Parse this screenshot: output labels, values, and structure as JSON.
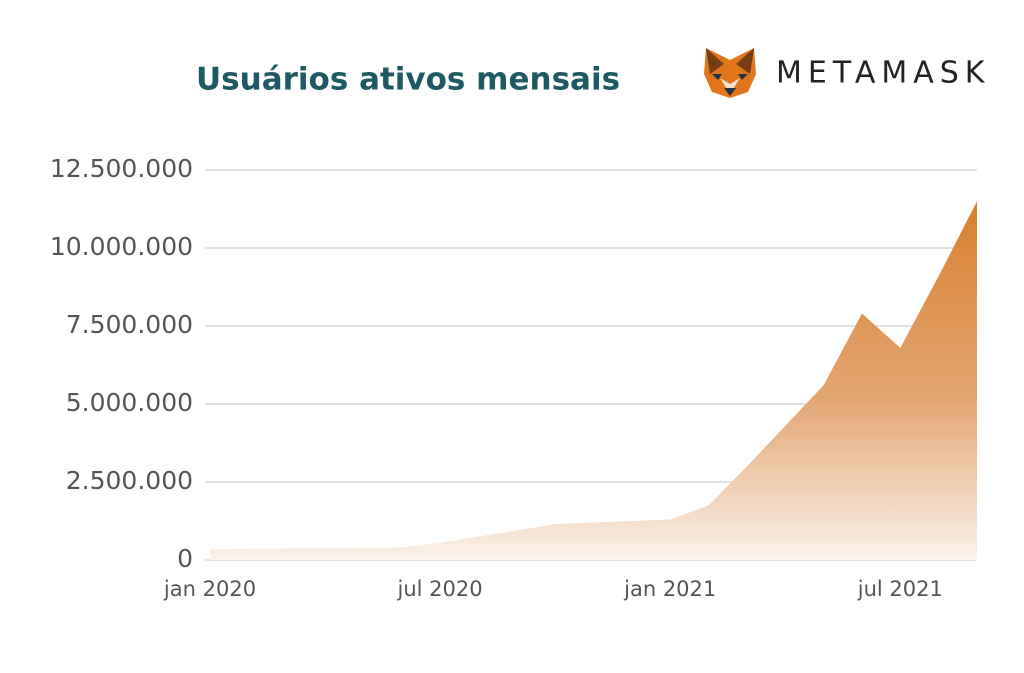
{
  "chart_data": {
    "type": "area",
    "title": "Usuários ativos mensais",
    "brand": "METAMASK",
    "categories": [
      "jan 2020",
      null,
      null,
      null,
      null,
      null,
      "jul 2020",
      null,
      null,
      null,
      null,
      null,
      "jan 2021",
      null,
      null,
      null,
      null,
      null,
      "jul 2021",
      null,
      null
    ],
    "values": [
      350000,
      360000,
      370000,
      380000,
      390000,
      400000,
      550000,
      750000,
      950000,
      1150000,
      1200000,
      1250000,
      1300000,
      1750000,
      3000000,
      4300000,
      5600000,
      7900000,
      6800000,
      9100000,
      11500000
    ],
    "color": "#d87f2e",
    "ylim": [
      0,
      12500000
    ],
    "yticks": [
      0,
      {
        "value": 2500000,
        "label": "2.500.000"
      },
      {
        "value": 5000000,
        "label": "5.000.000"
      },
      {
        "value": 7500000,
        "label": "7.500.000"
      },
      {
        "value": 10000000,
        "label": "10.000.000"
      },
      {
        "value": 12500000,
        "label": "12.500.000"
      }
    ],
    "grid": true
  }
}
